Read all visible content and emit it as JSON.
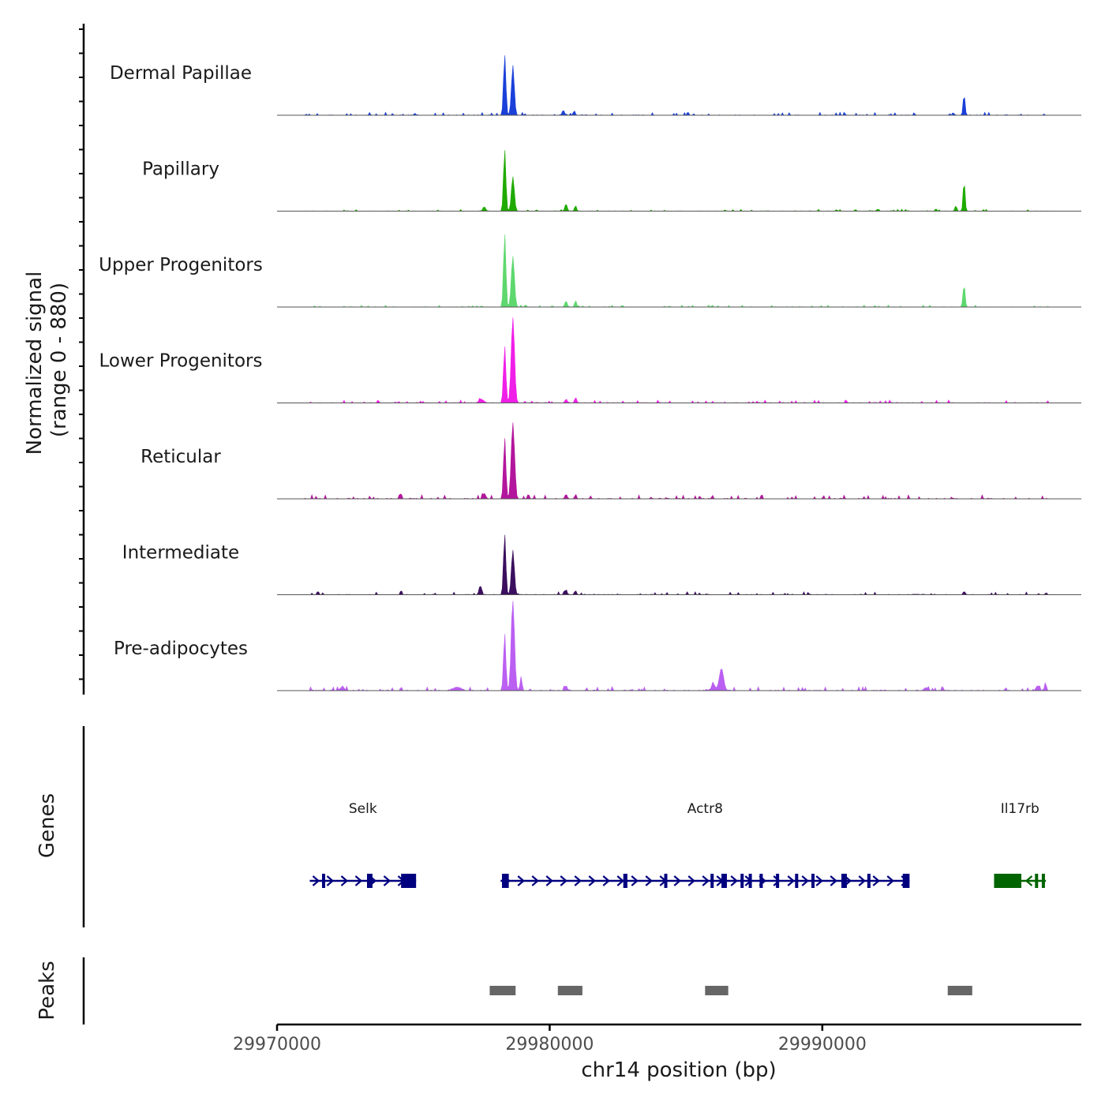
{
  "chart_data": {
    "type": "area",
    "title": "",
    "ylabel_line1": "Normalized signal",
    "ylabel_line2": "(range 0 - 880)",
    "y_range": [
      0,
      880
    ],
    "xlabel": "chr14 position (bp)",
    "x_range": [
      29970000,
      29999500
    ],
    "x_ticks": [
      29970000,
      29980000,
      29990000
    ],
    "x_tick_labels": [
      "29970000",
      "29980000",
      "29990000"
    ],
    "tracks": [
      {
        "name": "Dermal Papillae",
        "color": "#1a40d9",
        "peaks": [
          {
            "pos": 29978350,
            "height": 600,
            "width": 120
          },
          {
            "pos": 29978650,
            "height": 470,
            "width": 150
          },
          {
            "pos": 29980500,
            "height": 50,
            "width": 120
          },
          {
            "pos": 29980900,
            "height": 45,
            "width": 100
          },
          {
            "pos": 29995200,
            "height": 210,
            "width": 100
          },
          {
            "pos": 29994800,
            "height": 30,
            "width": 80
          }
        ],
        "baseline": 15
      },
      {
        "name": "Papillary",
        "color": "#1faa00",
        "peaks": [
          {
            "pos": 29978350,
            "height": 610,
            "width": 120
          },
          {
            "pos": 29978650,
            "height": 340,
            "width": 150
          },
          {
            "pos": 29977600,
            "height": 40,
            "width": 150
          },
          {
            "pos": 29980600,
            "height": 70,
            "width": 120
          },
          {
            "pos": 29980950,
            "height": 55,
            "width": 100
          },
          {
            "pos": 29995200,
            "height": 300,
            "width": 100
          },
          {
            "pos": 29994900,
            "height": 60,
            "width": 80
          }
        ],
        "baseline": 10
      },
      {
        "name": "Upper Progenitors",
        "color": "#5ed86e",
        "peaks": [
          {
            "pos": 29978350,
            "height": 720,
            "width": 120
          },
          {
            "pos": 29978650,
            "height": 500,
            "width": 160
          },
          {
            "pos": 29980600,
            "height": 60,
            "width": 120
          },
          {
            "pos": 29980950,
            "height": 65,
            "width": 100
          },
          {
            "pos": 29995200,
            "height": 230,
            "width": 100
          }
        ],
        "baseline": 10
      },
      {
        "name": "Lower Progenitors",
        "color": "#f01fe8",
        "peaks": [
          {
            "pos": 29978350,
            "height": 560,
            "width": 120
          },
          {
            "pos": 29978650,
            "height": 840,
            "width": 170
          },
          {
            "pos": 29977500,
            "height": 35,
            "width": 250
          },
          {
            "pos": 29980600,
            "height": 35,
            "width": 120
          },
          {
            "pos": 29980950,
            "height": 55,
            "width": 100
          }
        ],
        "baseline": 15
      },
      {
        "name": "Reticular",
        "color": "#b3169c",
        "peaks": [
          {
            "pos": 29978350,
            "height": 600,
            "width": 120
          },
          {
            "pos": 29978650,
            "height": 750,
            "width": 170
          },
          {
            "pos": 29977600,
            "height": 55,
            "width": 150
          },
          {
            "pos": 29974550,
            "height": 55,
            "width": 80
          },
          {
            "pos": 29980600,
            "height": 45,
            "width": 120
          },
          {
            "pos": 29980950,
            "height": 40,
            "width": 100
          },
          {
            "pos": 29981500,
            "height": 30,
            "width": 80
          }
        ],
        "baseline": 20
      },
      {
        "name": "Intermediate",
        "color": "#3b0f5e",
        "peaks": [
          {
            "pos": 29978350,
            "height": 600,
            "width": 120
          },
          {
            "pos": 29978650,
            "height": 440,
            "width": 150
          },
          {
            "pos": 29977450,
            "height": 90,
            "width": 120
          },
          {
            "pos": 29974550,
            "height": 50,
            "width": 80
          },
          {
            "pos": 29971500,
            "height": 35,
            "width": 100
          },
          {
            "pos": 29980600,
            "height": 55,
            "width": 100
          },
          {
            "pos": 29980950,
            "height": 40,
            "width": 100
          },
          {
            "pos": 29995200,
            "height": 35,
            "width": 100
          },
          {
            "pos": 29998200,
            "height": 25,
            "width": 60
          }
        ],
        "baseline": 15
      },
      {
        "name": "Pre-adipocytes",
        "color": "#bb5ff2",
        "peaks": [
          {
            "pos": 29978350,
            "height": 560,
            "width": 120
          },
          {
            "pos": 29978650,
            "height": 880,
            "width": 170
          },
          {
            "pos": 29978950,
            "height": 140,
            "width": 100
          },
          {
            "pos": 29980600,
            "height": 50,
            "width": 120
          },
          {
            "pos": 29986300,
            "height": 220,
            "width": 220
          },
          {
            "pos": 29986000,
            "height": 60,
            "width": 200
          },
          {
            "pos": 29972400,
            "height": 40,
            "width": 180
          },
          {
            "pos": 29976600,
            "height": 35,
            "width": 400
          },
          {
            "pos": 29974550,
            "height": 35,
            "width": 80
          },
          {
            "pos": 29997900,
            "height": 50,
            "width": 150
          },
          {
            "pos": 29998200,
            "height": 60,
            "width": 80
          },
          {
            "pos": 29993800,
            "height": 30,
            "width": 200
          }
        ],
        "baseline": 20
      }
    ],
    "genes": {
      "ylabel": "Genes",
      "items": [
        {
          "name": "Selk",
          "strand": "+",
          "start": 29971200,
          "end": 29975100,
          "color": "#00007f",
          "exons": [
            [
              29971650,
              29971750
            ],
            [
              29973300,
              29973500
            ],
            [
              29974550,
              29975100
            ]
          ]
        },
        {
          "name": "Actr8",
          "strand": "+",
          "start": 29978200,
          "end": 29993200,
          "color": "#00007f",
          "exons": [
            [
              29978250,
              29978500
            ],
            [
              29982700,
              29982850
            ],
            [
              29984200,
              29984300
            ],
            [
              29985900,
              29986000
            ],
            [
              29986300,
              29986500
            ],
            [
              29987000,
              29987100
            ],
            [
              29987300,
              29987400
            ],
            [
              29987700,
              29987800
            ],
            [
              29988300,
              29988400
            ],
            [
              29989000,
              29989100
            ],
            [
              29989600,
              29989700
            ],
            [
              29990700,
              29990900
            ],
            [
              29991650,
              29991750
            ],
            [
              29992950,
              29993200
            ]
          ]
        },
        {
          "name": "Il17rb",
          "strand": "-",
          "start": 29996300,
          "end": 29998200,
          "color": "#006400",
          "exons": [
            [
              29996300,
              29997300
            ],
            [
              29997800,
              29997850
            ],
            [
              29998050,
              29998100
            ]
          ]
        }
      ]
    },
    "peaks_track": {
      "ylabel": "Peaks",
      "color": "#666666",
      "regions": [
        [
          29977800,
          29978750
        ],
        [
          29980300,
          29981200
        ],
        [
          29985700,
          29986550
        ],
        [
          29994600,
          29995500
        ]
      ]
    }
  }
}
